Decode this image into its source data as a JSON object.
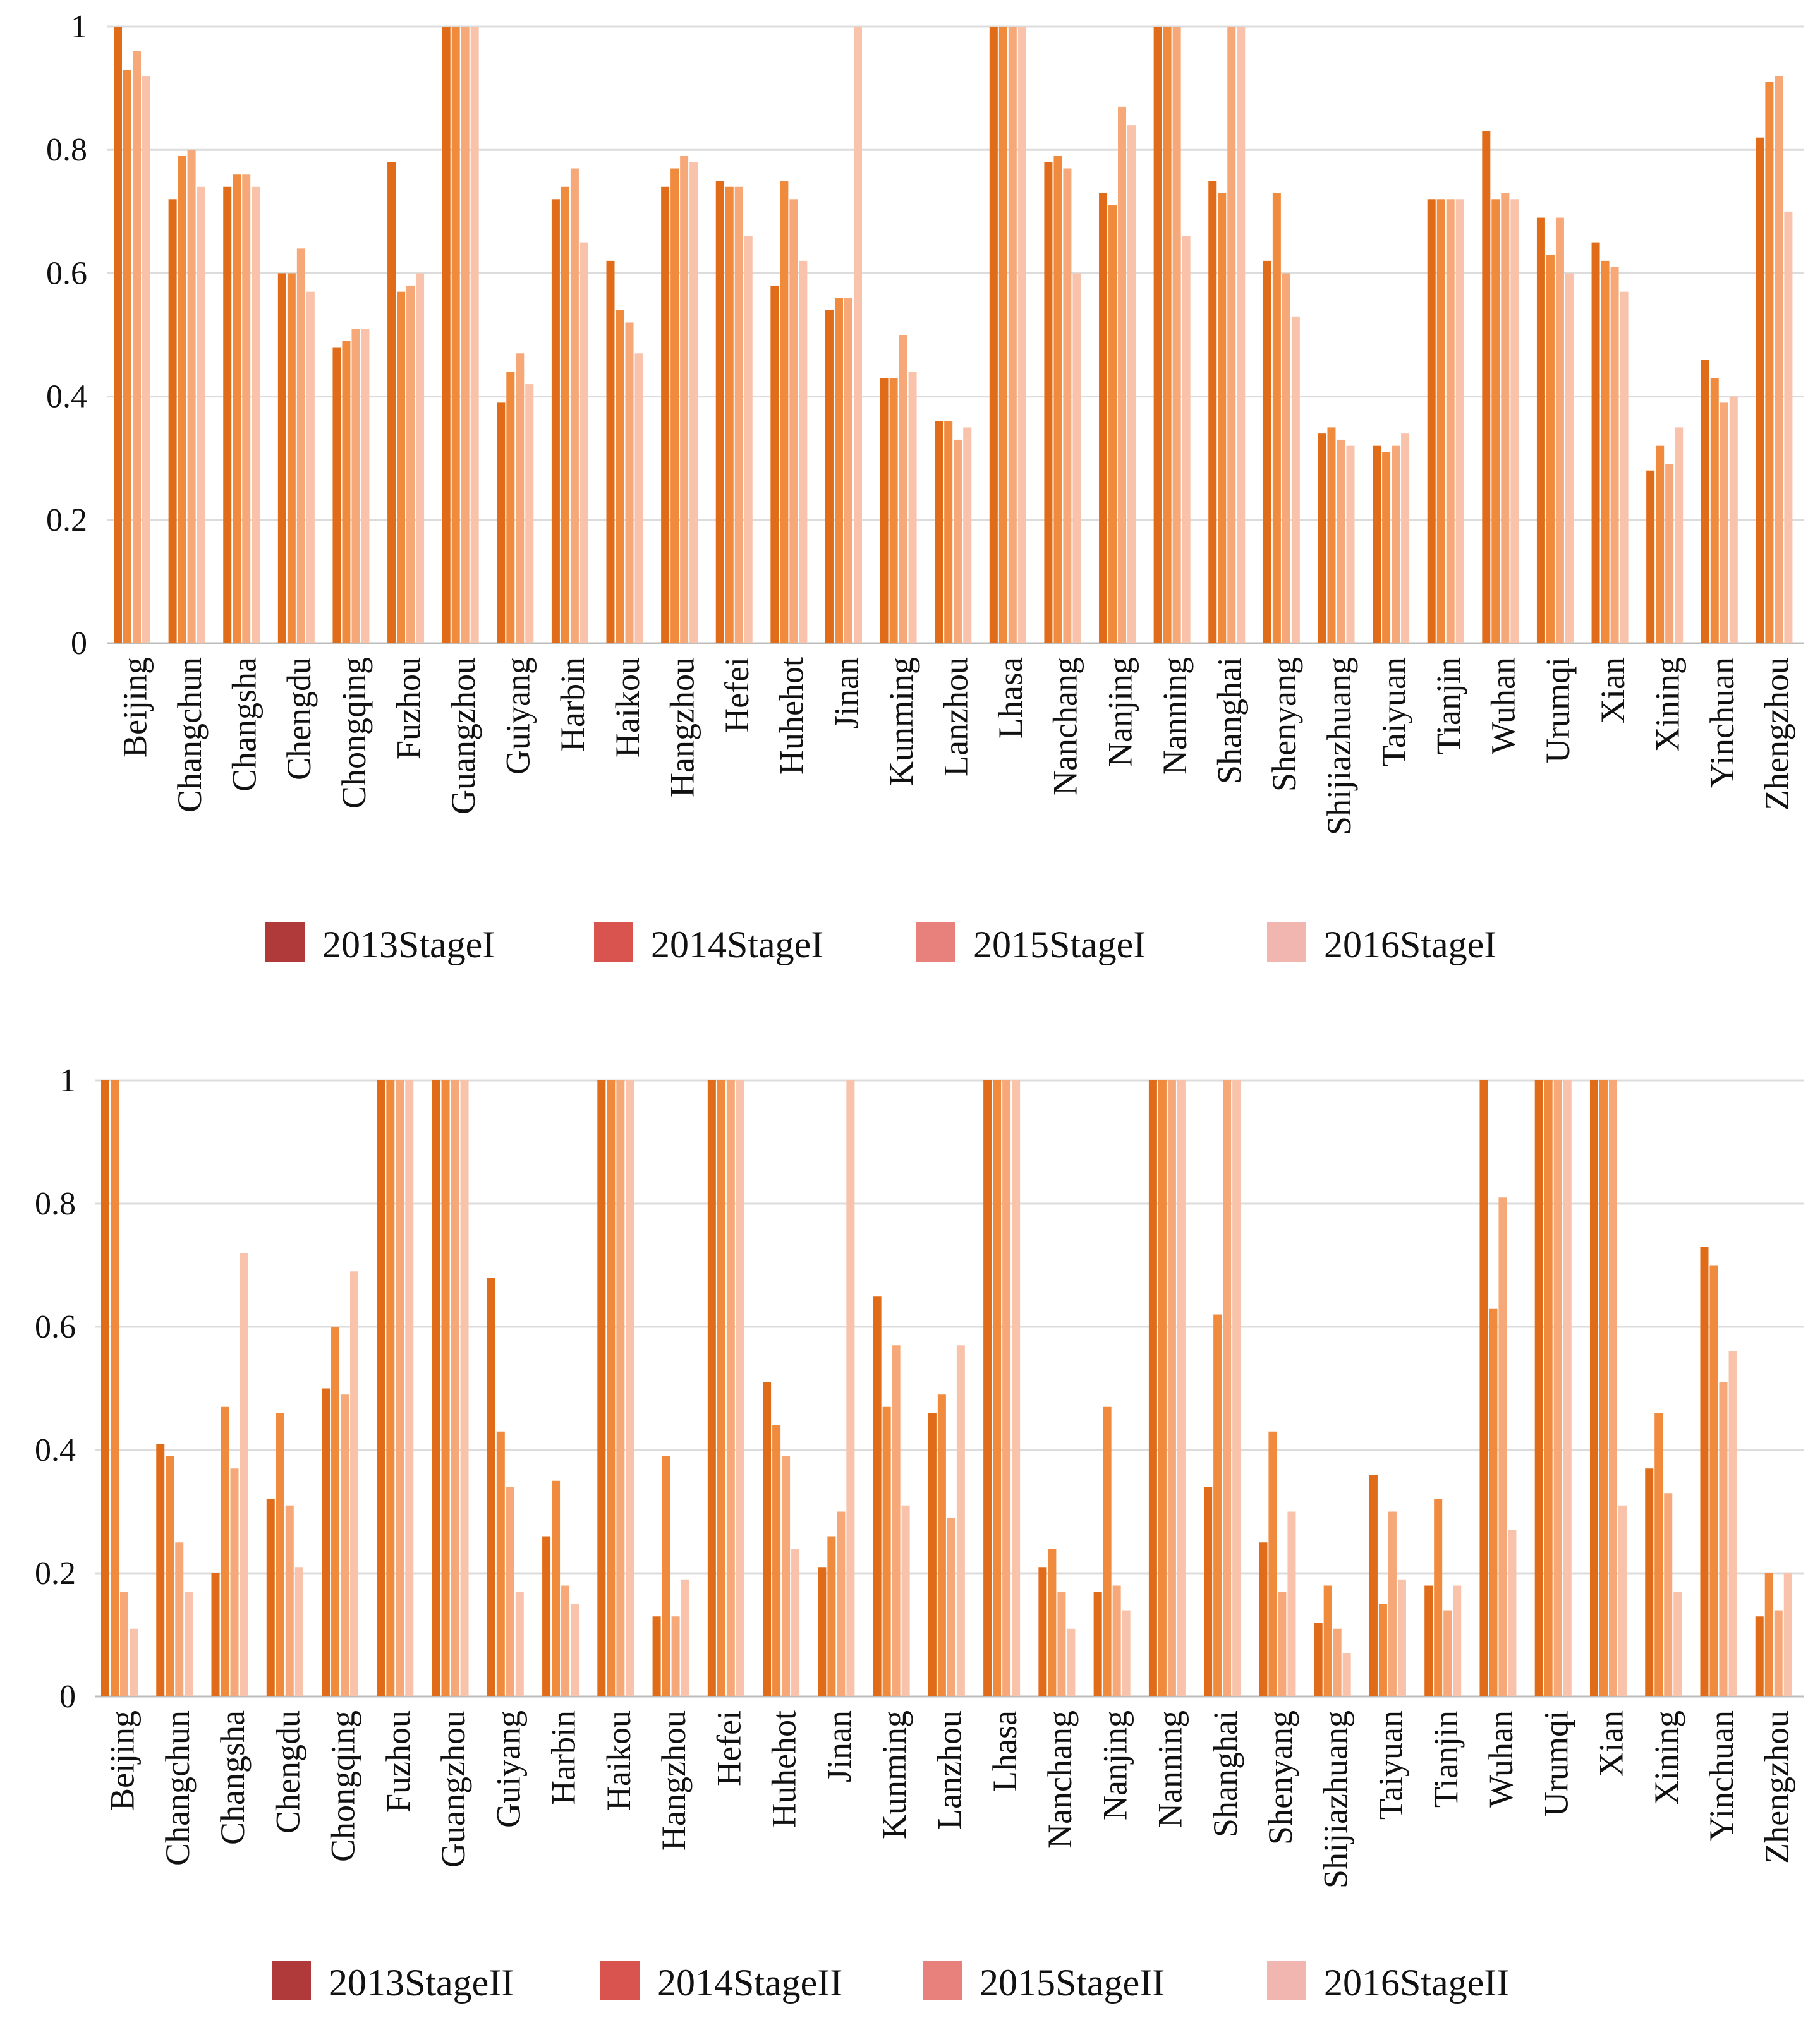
{
  "colors": {
    "series_bars": [
      "#e06c1a",
      "#f08a3c",
      "#f6a878",
      "#f8c3aa"
    ],
    "legend_swatches": [
      "#b03a3a",
      "#d9534f",
      "#e8807c",
      "#f2b6b0"
    ]
  },
  "chart_data": [
    {
      "type": "bar",
      "title": "",
      "xlabel": "",
      "ylabel": "",
      "ylim": [
        0,
        1
      ],
      "yticks": [
        "0",
        "0.2",
        "0.4",
        "0.6",
        "0.8",
        "1"
      ],
      "grid": true,
      "legend_position": "bottom",
      "categories": [
        "Beijing",
        "Changchun",
        "Changsha",
        "Chengdu",
        "Chongqing",
        "Fuzhou",
        "Guangzhou",
        "Guiyang",
        "Harbin",
        "Haikou",
        "Hangzhou",
        "Hefei",
        "Huhehot",
        "Jinan",
        "Kunming",
        "Lanzhou",
        "Lhasa",
        "Nanchang",
        "Nanjing",
        "Nanning",
        "Shanghai",
        "Shenyang",
        "Shijiazhuang",
        "Taiyuan",
        "Tianjin",
        "Wuhan",
        "Urumqi",
        "Xian",
        "Xining",
        "Yinchuan",
        "Zhengzhou"
      ],
      "series": [
        {
          "name": "2013StageI",
          "values": [
            1.0,
            0.72,
            0.74,
            0.6,
            0.48,
            0.78,
            1.0,
            0.39,
            0.72,
            0.62,
            0.74,
            0.75,
            0.58,
            0.54,
            0.43,
            0.36,
            1.0,
            0.78,
            0.73,
            1.0,
            0.75,
            0.62,
            0.34,
            0.32,
            0.72,
            0.83,
            0.69,
            0.65,
            0.28,
            0.46,
            0.82
          ]
        },
        {
          "name": "2014StageI",
          "values": [
            0.93,
            0.79,
            0.76,
            0.6,
            0.49,
            0.57,
            1.0,
            0.44,
            0.74,
            0.54,
            0.77,
            0.74,
            0.75,
            0.56,
            0.43,
            0.36,
            1.0,
            0.79,
            0.71,
            1.0,
            0.73,
            0.73,
            0.35,
            0.31,
            0.72,
            0.72,
            0.63,
            0.62,
            0.32,
            0.43,
            0.91
          ]
        },
        {
          "name": "2015StageI",
          "values": [
            0.96,
            0.8,
            0.76,
            0.64,
            0.51,
            0.58,
            1.0,
            0.47,
            0.77,
            0.52,
            0.79,
            0.74,
            0.72,
            0.56,
            0.5,
            0.33,
            1.0,
            0.77,
            0.87,
            1.0,
            1.0,
            0.6,
            0.33,
            0.32,
            0.72,
            0.73,
            0.69,
            0.61,
            0.29,
            0.39,
            0.92
          ]
        },
        {
          "name": "2016StageI",
          "values": [
            0.92,
            0.74,
            0.74,
            0.57,
            0.51,
            0.6,
            1.0,
            0.42,
            0.65,
            0.47,
            0.78,
            0.66,
            0.62,
            1.0,
            0.44,
            0.35,
            1.0,
            0.6,
            0.84,
            0.66,
            1.0,
            0.53,
            0.32,
            0.34,
            0.72,
            0.72,
            0.6,
            0.57,
            0.35,
            0.4,
            0.7
          ]
        }
      ]
    },
    {
      "type": "bar",
      "title": "",
      "xlabel": "",
      "ylabel": "",
      "ylim": [
        0,
        1
      ],
      "yticks": [
        "0",
        "0.2",
        "0.4",
        "0.6",
        "0.8",
        "1"
      ],
      "grid": true,
      "legend_position": "bottom",
      "categories": [
        "Beijing",
        "Changchun",
        "Changsha",
        "Chengdu",
        "Chongqing",
        "Fuzhou",
        "Guangzhou",
        "Guiyang",
        "Harbin",
        "Haikou",
        "Hangzhou",
        "Hefei",
        "Huhehot",
        "Jinan",
        "Kunming",
        "Lanzhou",
        "Lhasa",
        "Nanchang",
        "Nanjing",
        "Nanning",
        "Shanghai",
        "Shenyang",
        "Shijiazhuang",
        "Taiyuan",
        "Tianjin",
        "Wuhan",
        "Urumqi",
        "Xian",
        "Xining",
        "Yinchuan",
        "Zhengzhou"
      ],
      "series": [
        {
          "name": "2013StageII",
          "values": [
            1.0,
            0.41,
            0.2,
            0.32,
            0.5,
            1.0,
            1.0,
            0.68,
            0.26,
            1.0,
            0.13,
            1.0,
            0.51,
            0.21,
            0.65,
            0.46,
            1.0,
            0.21,
            0.17,
            1.0,
            0.34,
            0.25,
            0.12,
            0.36,
            0.18,
            1.0,
            1.0,
            1.0,
            0.37,
            0.73,
            0.13
          ]
        },
        {
          "name": "2014StageII",
          "values": [
            1.0,
            0.39,
            0.47,
            0.46,
            0.6,
            1.0,
            1.0,
            0.43,
            0.35,
            1.0,
            0.39,
            1.0,
            0.44,
            0.26,
            0.47,
            0.49,
            1.0,
            0.24,
            0.47,
            1.0,
            0.62,
            0.43,
            0.18,
            0.15,
            0.32,
            0.63,
            1.0,
            1.0,
            0.46,
            0.7,
            0.2
          ]
        },
        {
          "name": "2015StageII",
          "values": [
            0.17,
            0.25,
            0.37,
            0.31,
            0.49,
            1.0,
            1.0,
            0.34,
            0.18,
            1.0,
            0.13,
            1.0,
            0.39,
            0.3,
            0.57,
            0.29,
            1.0,
            0.17,
            0.18,
            1.0,
            1.0,
            0.17,
            0.11,
            0.3,
            0.14,
            0.81,
            1.0,
            1.0,
            0.33,
            0.51,
            0.14
          ]
        },
        {
          "name": "2016StageII",
          "values": [
            0.11,
            0.17,
            0.72,
            0.21,
            0.69,
            1.0,
            1.0,
            0.17,
            0.15,
            1.0,
            0.19,
            1.0,
            0.24,
            1.0,
            0.31,
            0.57,
            1.0,
            0.11,
            0.14,
            1.0,
            1.0,
            0.3,
            0.07,
            0.19,
            0.18,
            0.27,
            1.0,
            0.31,
            0.17,
            0.56,
            0.2
          ]
        }
      ]
    }
  ]
}
